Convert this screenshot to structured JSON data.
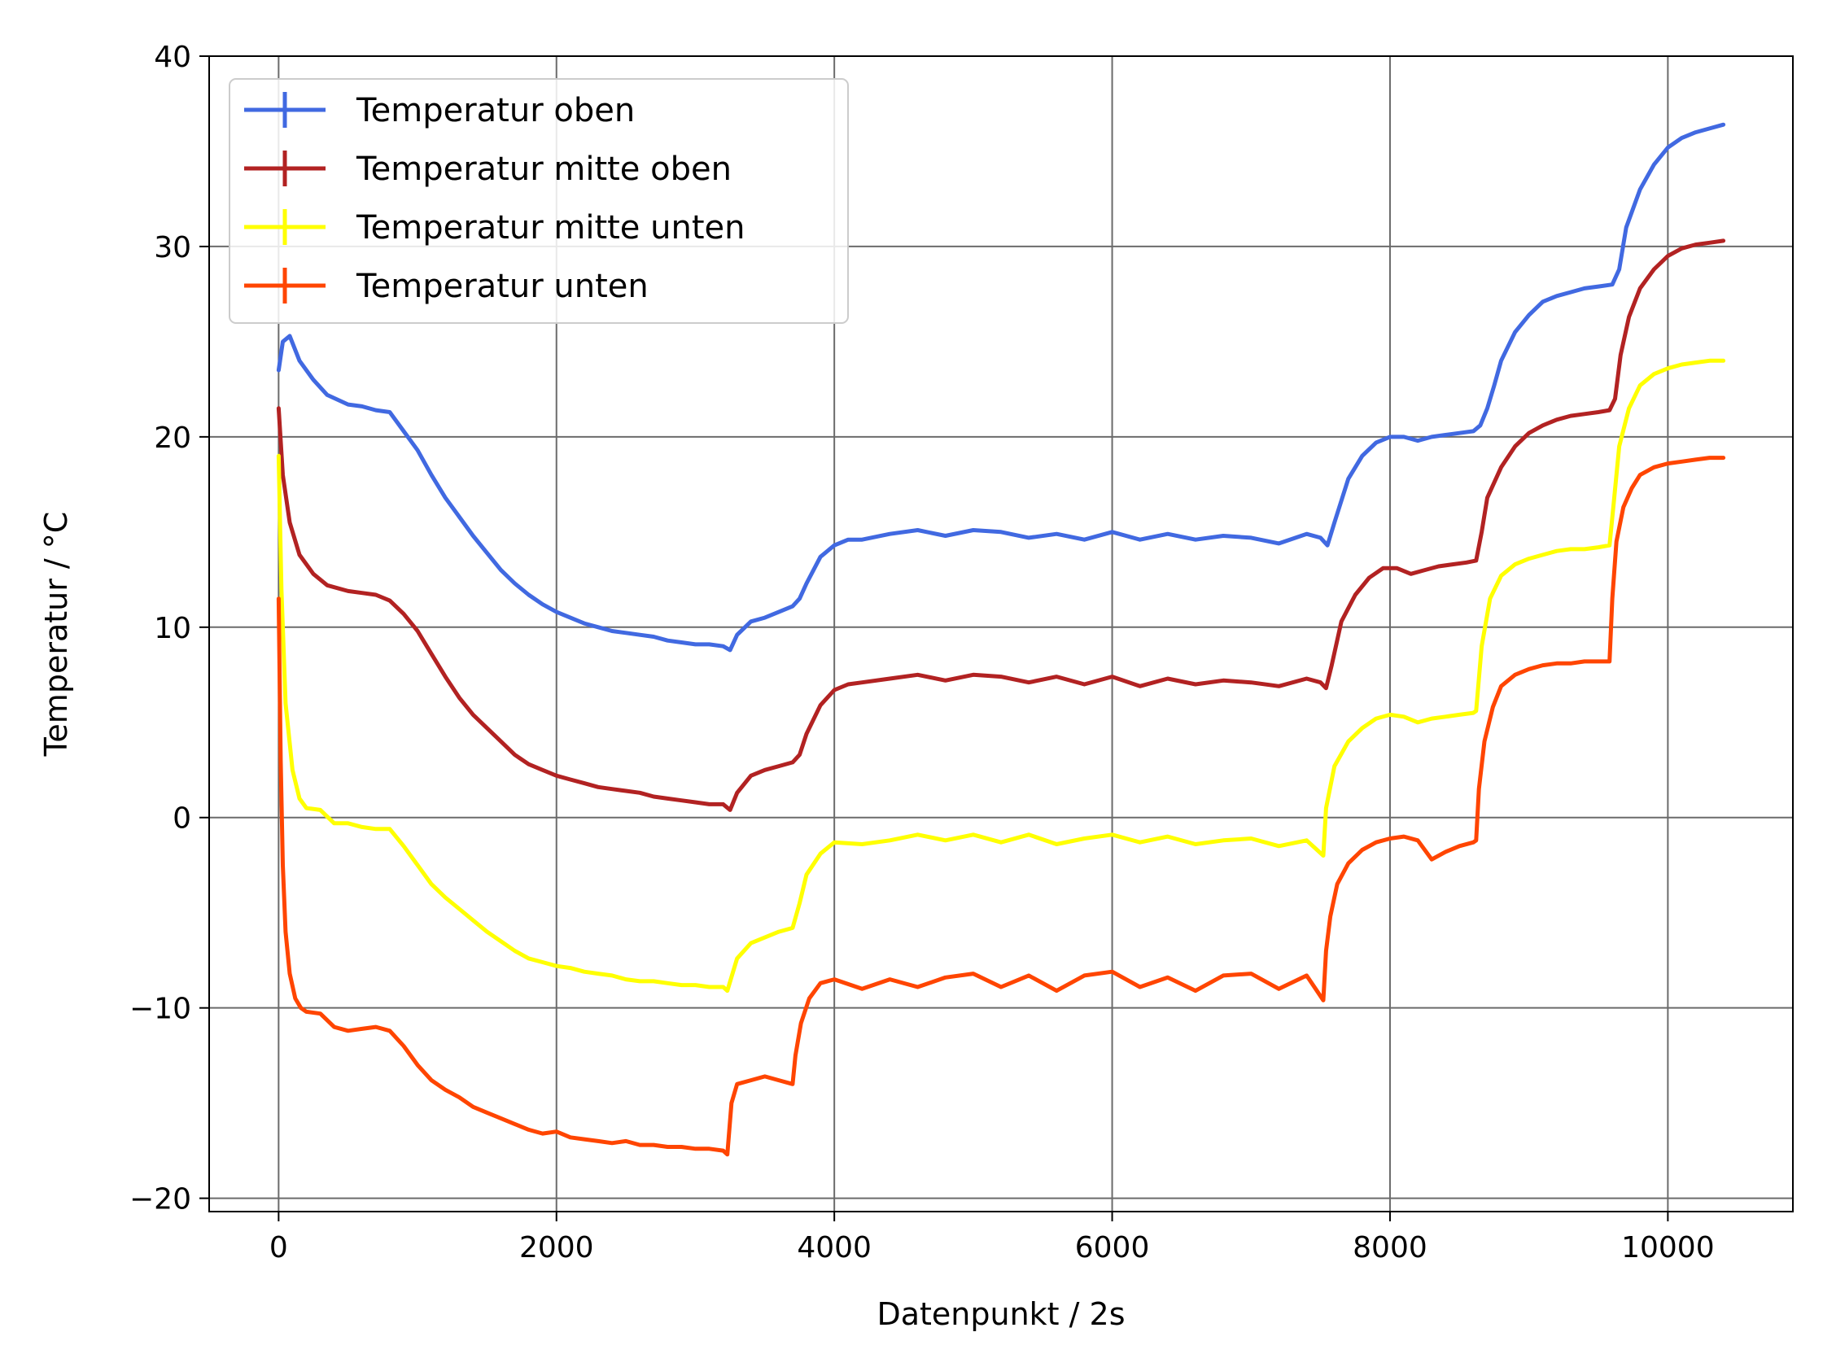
{
  "chart_data": {
    "type": "line",
    "title": "",
    "xlabel": "Datenpunkt / 2s",
    "ylabel": "Temperatur / °C",
    "xlim": [
      -500,
      10900
    ],
    "ylim": [
      -20.7,
      40
    ],
    "xticks": [
      0,
      2000,
      4000,
      6000,
      8000,
      10000
    ],
    "yticks": [
      -20,
      -10,
      0,
      10,
      20,
      30,
      40
    ],
    "ytick_labels": [
      "−20",
      "−10",
      "0",
      "10",
      "20",
      "30",
      "40"
    ],
    "grid": true,
    "legend_position": "upper-left",
    "series": [
      {
        "name": "Temperatur oben",
        "color": "#4169e1",
        "x": [
          0,
          30,
          80,
          150,
          250,
          350,
          500,
          600,
          700,
          800,
          900,
          1000,
          1100,
          1200,
          1300,
          1400,
          1500,
          1600,
          1700,
          1800,
          1900,
          2000,
          2100,
          2200,
          2300,
          2400,
          2500,
          2600,
          2700,
          2800,
          2900,
          3000,
          3100,
          3200,
          3250,
          3300,
          3400,
          3500,
          3600,
          3700,
          3750,
          3800,
          3900,
          4000,
          4100,
          4200,
          4400,
          4600,
          4800,
          5000,
          5200,
          5400,
          5600,
          5800,
          6000,
          6200,
          6400,
          6600,
          6800,
          7000,
          7200,
          7400,
          7500,
          7550,
          7600,
          7700,
          7800,
          7900,
          8000,
          8100,
          8200,
          8300,
          8400,
          8500,
          8600,
          8650,
          8700,
          8750,
          8800,
          8900,
          9000,
          9100,
          9200,
          9300,
          9400,
          9500,
          9600,
          9650,
          9700,
          9800,
          9900,
          10000,
          10100,
          10200,
          10300,
          10400
        ],
        "y": [
          23.5,
          25.0,
          25.3,
          24.0,
          23.0,
          22.2,
          21.7,
          21.6,
          21.4,
          21.3,
          20.3,
          19.3,
          18.0,
          16.8,
          15.8,
          14.8,
          13.9,
          13.0,
          12.3,
          11.7,
          11.2,
          10.8,
          10.5,
          10.2,
          10.0,
          9.8,
          9.7,
          9.6,
          9.5,
          9.3,
          9.2,
          9.1,
          9.1,
          9.0,
          8.8,
          9.6,
          10.3,
          10.5,
          10.8,
          11.1,
          11.5,
          12.3,
          13.7,
          14.3,
          14.6,
          14.6,
          14.9,
          15.1,
          14.8,
          15.1,
          15.0,
          14.7,
          14.9,
          14.6,
          15.0,
          14.6,
          14.9,
          14.6,
          14.8,
          14.7,
          14.4,
          14.9,
          14.7,
          14.3,
          15.5,
          17.8,
          19.0,
          19.7,
          20.0,
          20.0,
          19.8,
          20.0,
          20.1,
          20.2,
          20.3,
          20.6,
          21.5,
          22.7,
          24.0,
          25.5,
          26.4,
          27.1,
          27.4,
          27.6,
          27.8,
          27.9,
          28.0,
          28.8,
          31.0,
          33.0,
          34.3,
          35.2,
          35.7,
          36.0,
          36.2,
          36.4
        ]
      },
      {
        "name": "Temperatur mitte oben",
        "color": "#b22222",
        "x": [
          0,
          30,
          80,
          150,
          250,
          350,
          500,
          600,
          700,
          800,
          900,
          1000,
          1100,
          1200,
          1300,
          1400,
          1500,
          1600,
          1700,
          1800,
          1900,
          2000,
          2100,
          2200,
          2300,
          2400,
          2500,
          2600,
          2700,
          2800,
          2900,
          3000,
          3100,
          3200,
          3250,
          3300,
          3400,
          3500,
          3600,
          3700,
          3750,
          3800,
          3900,
          4000,
          4100,
          4200,
          4400,
          4600,
          4800,
          5000,
          5200,
          5400,
          5600,
          5800,
          6000,
          6200,
          6400,
          6600,
          6800,
          7000,
          7200,
          7400,
          7500,
          7540,
          7580,
          7650,
          7750,
          7850,
          7950,
          8050,
          8150,
          8250,
          8350,
          8450,
          8550,
          8620,
          8660,
          8700,
          8800,
          8900,
          9000,
          9100,
          9200,
          9300,
          9400,
          9500,
          9580,
          9620,
          9660,
          9720,
          9800,
          9900,
          10000,
          10100,
          10200,
          10300,
          10400
        ],
        "y": [
          21.5,
          18.0,
          15.5,
          13.8,
          12.8,
          12.2,
          11.9,
          11.8,
          11.7,
          11.4,
          10.7,
          9.8,
          8.6,
          7.4,
          6.3,
          5.4,
          4.7,
          4.0,
          3.3,
          2.8,
          2.5,
          2.2,
          2.0,
          1.8,
          1.6,
          1.5,
          1.4,
          1.3,
          1.1,
          1.0,
          0.9,
          0.8,
          0.7,
          0.7,
          0.4,
          1.3,
          2.2,
          2.5,
          2.7,
          2.9,
          3.3,
          4.4,
          5.9,
          6.7,
          7.0,
          7.1,
          7.3,
          7.5,
          7.2,
          7.5,
          7.4,
          7.1,
          7.4,
          7.0,
          7.4,
          6.9,
          7.3,
          7.0,
          7.2,
          7.1,
          6.9,
          7.3,
          7.1,
          6.8,
          8.0,
          10.3,
          11.7,
          12.6,
          13.1,
          13.1,
          12.8,
          13.0,
          13.2,
          13.3,
          13.4,
          13.5,
          15.0,
          16.8,
          18.4,
          19.5,
          20.2,
          20.6,
          20.9,
          21.1,
          21.2,
          21.3,
          21.4,
          22.0,
          24.3,
          26.3,
          27.8,
          28.8,
          29.5,
          29.9,
          30.1,
          30.2,
          30.3
        ]
      },
      {
        "name": "Temperatur mitte unten",
        "color": "#ffff00",
        "x": [
          0,
          20,
          50,
          100,
          150,
          200,
          300,
          400,
          500,
          600,
          700,
          800,
          900,
          1000,
          1100,
          1200,
          1300,
          1400,
          1500,
          1600,
          1700,
          1800,
          1900,
          2000,
          2100,
          2200,
          2300,
          2400,
          2500,
          2600,
          2700,
          2800,
          2900,
          3000,
          3100,
          3200,
          3230,
          3300,
          3400,
          3500,
          3600,
          3700,
          3750,
          3800,
          3900,
          4000,
          4200,
          4400,
          4600,
          4800,
          5000,
          5200,
          5400,
          5600,
          5800,
          6000,
          6200,
          6400,
          6600,
          6800,
          7000,
          7200,
          7400,
          7520,
          7540,
          7600,
          7700,
          7800,
          7900,
          8000,
          8100,
          8200,
          8300,
          8400,
          8500,
          8600,
          8620,
          8660,
          8720,
          8800,
          8900,
          9000,
          9100,
          9200,
          9300,
          9400,
          9500,
          9580,
          9610,
          9650,
          9720,
          9800,
          9900,
          10000,
          10100,
          10200,
          10300,
          10400
        ],
        "y": [
          19.0,
          12.0,
          6.0,
          2.5,
          1.0,
          0.5,
          0.4,
          -0.3,
          -0.3,
          -0.5,
          -0.6,
          -0.6,
          -1.5,
          -2.5,
          -3.5,
          -4.2,
          -4.8,
          -5.4,
          -6.0,
          -6.5,
          -7.0,
          -7.4,
          -7.6,
          -7.8,
          -7.9,
          -8.1,
          -8.2,
          -8.3,
          -8.5,
          -8.6,
          -8.6,
          -8.7,
          -8.8,
          -8.8,
          -8.9,
          -8.9,
          -9.1,
          -7.4,
          -6.6,
          -6.3,
          -6.0,
          -5.8,
          -4.5,
          -3.0,
          -1.9,
          -1.3,
          -1.4,
          -1.2,
          -0.9,
          -1.2,
          -0.9,
          -1.3,
          -0.9,
          -1.4,
          -1.1,
          -0.9,
          -1.3,
          -1.0,
          -1.4,
          -1.2,
          -1.1,
          -1.5,
          -1.2,
          -2.0,
          0.5,
          2.7,
          4.0,
          4.7,
          5.2,
          5.4,
          5.3,
          5.0,
          5.2,
          5.3,
          5.4,
          5.5,
          5.6,
          9.0,
          11.5,
          12.7,
          13.3,
          13.6,
          13.8,
          14.0,
          14.1,
          14.1,
          14.2,
          14.3,
          16.5,
          19.5,
          21.5,
          22.7,
          23.3,
          23.6,
          23.8,
          23.9,
          24.0,
          24.0
        ]
      },
      {
        "name": "Temperatur unten",
        "color": "#ff4500",
        "x": [
          0,
          15,
          30,
          50,
          80,
          120,
          160,
          200,
          300,
          400,
          500,
          600,
          700,
          800,
          900,
          1000,
          1100,
          1200,
          1300,
          1400,
          1500,
          1600,
          1700,
          1800,
          1900,
          2000,
          2100,
          2200,
          2300,
          2400,
          2500,
          2600,
          2700,
          2800,
          2900,
          3000,
          3100,
          3200,
          3230,
          3260,
          3300,
          3400,
          3500,
          3600,
          3700,
          3720,
          3760,
          3820,
          3900,
          4000,
          4200,
          4400,
          4600,
          4800,
          5000,
          5200,
          5400,
          5600,
          5800,
          6000,
          6200,
          6400,
          6600,
          6800,
          7000,
          7200,
          7400,
          7520,
          7540,
          7570,
          7620,
          7700,
          7800,
          7900,
          8000,
          8100,
          8200,
          8300,
          8400,
          8500,
          8600,
          8620,
          8640,
          8680,
          8740,
          8800,
          8900,
          9000,
          9100,
          9200,
          9300,
          9400,
          9500,
          9580,
          9600,
          9630,
          9680,
          9740,
          9800,
          9900,
          10000,
          10100,
          10200,
          10300,
          10400
        ],
        "y": [
          11.5,
          3.0,
          -2.5,
          -6.0,
          -8.2,
          -9.5,
          -10.0,
          -10.2,
          -10.3,
          -11.0,
          -11.2,
          -11.1,
          -11.0,
          -11.2,
          -12.0,
          -13.0,
          -13.8,
          -14.3,
          -14.7,
          -15.2,
          -15.5,
          -15.8,
          -16.1,
          -16.4,
          -16.6,
          -16.5,
          -16.8,
          -16.9,
          -17.0,
          -17.1,
          -17.0,
          -17.2,
          -17.2,
          -17.3,
          -17.3,
          -17.4,
          -17.4,
          -17.5,
          -17.7,
          -15.0,
          -14.0,
          -13.8,
          -13.6,
          -13.8,
          -14.0,
          -12.5,
          -10.8,
          -9.5,
          -8.7,
          -8.5,
          -9.0,
          -8.5,
          -8.9,
          -8.4,
          -8.2,
          -8.9,
          -8.3,
          -9.1,
          -8.3,
          -8.1,
          -8.9,
          -8.4,
          -9.1,
          -8.3,
          -8.2,
          -9.0,
          -8.3,
          -9.6,
          -7.0,
          -5.2,
          -3.5,
          -2.4,
          -1.7,
          -1.3,
          -1.1,
          -1.0,
          -1.2,
          -2.2,
          -1.8,
          -1.5,
          -1.3,
          -1.2,
          1.5,
          4.0,
          5.8,
          6.9,
          7.5,
          7.8,
          8.0,
          8.1,
          8.1,
          8.2,
          8.2,
          8.2,
          11.5,
          14.5,
          16.3,
          17.3,
          18.0,
          18.4,
          18.6,
          18.7,
          18.8,
          18.9,
          18.9
        ]
      }
    ]
  }
}
